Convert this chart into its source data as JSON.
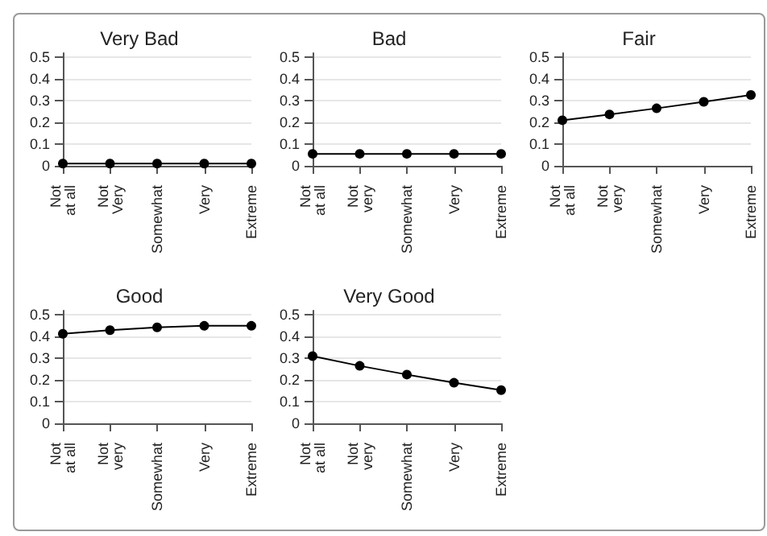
{
  "chart_data": [
    {
      "type": "line",
      "title": "Very Bad",
      "categories": [
        "Not\nat all",
        "Not\nVery",
        "Somewhat",
        "Very",
        "Extreme"
      ],
      "values": [
        0.01,
        0.01,
        0.01,
        0.01,
        0.01
      ],
      "color": "#000000",
      "ylim": [
        -0.03,
        0.52
      ],
      "yticks": [
        0,
        0.1,
        0.2,
        0.3,
        0.4,
        0.5
      ],
      "grid": "y",
      "marker": "circle"
    },
    {
      "type": "line",
      "title": "Bad",
      "categories": [
        "Not\nat all",
        "Not\nvery",
        "Somewhat",
        "Very",
        "Extreme"
      ],
      "values": [
        0.055,
        0.055,
        0.055,
        0.055,
        0.055
      ],
      "color": "#000000",
      "ylim": [
        -0.03,
        0.52
      ],
      "yticks": [
        0,
        0.1,
        0.2,
        0.3,
        0.4,
        0.5
      ],
      "grid": "y",
      "marker": "circle"
    },
    {
      "type": "line",
      "title": "Fair",
      "categories": [
        "Not\nat all",
        "Not\nvery",
        "Somewhat",
        "Very",
        "Extreme"
      ],
      "values": [
        0.21,
        0.237,
        0.265,
        0.295,
        0.327
      ],
      "color": "#000000",
      "ylim": [
        -0.03,
        0.52
      ],
      "yticks": [
        0,
        0.1,
        0.2,
        0.3,
        0.4,
        0.5
      ],
      "grid": "y",
      "marker": "circle"
    },
    {
      "type": "line",
      "title": "Good",
      "categories": [
        "Not\nat all",
        "Not\nvery",
        "Somewhat",
        "Very",
        "Extreme"
      ],
      "values": [
        0.413,
        0.43,
        0.443,
        0.45,
        0.45
      ],
      "color": "#000000",
      "ylim": [
        -0.03,
        0.52
      ],
      "yticks": [
        0,
        0.1,
        0.2,
        0.3,
        0.4,
        0.5
      ],
      "grid": "y",
      "marker": "circle"
    },
    {
      "type": "line",
      "title": "Very Good",
      "categories": [
        "Not\nat all",
        "Not\nvery",
        "Somewhat",
        "Very",
        "Extreme"
      ],
      "values": [
        0.31,
        0.265,
        0.225,
        0.187,
        0.153
      ],
      "color": "#000000",
      "ylim": [
        -0.03,
        0.52
      ],
      "yticks": [
        0,
        0.1,
        0.2,
        0.3,
        0.4,
        0.5
      ],
      "grid": "y",
      "marker": "circle"
    }
  ]
}
